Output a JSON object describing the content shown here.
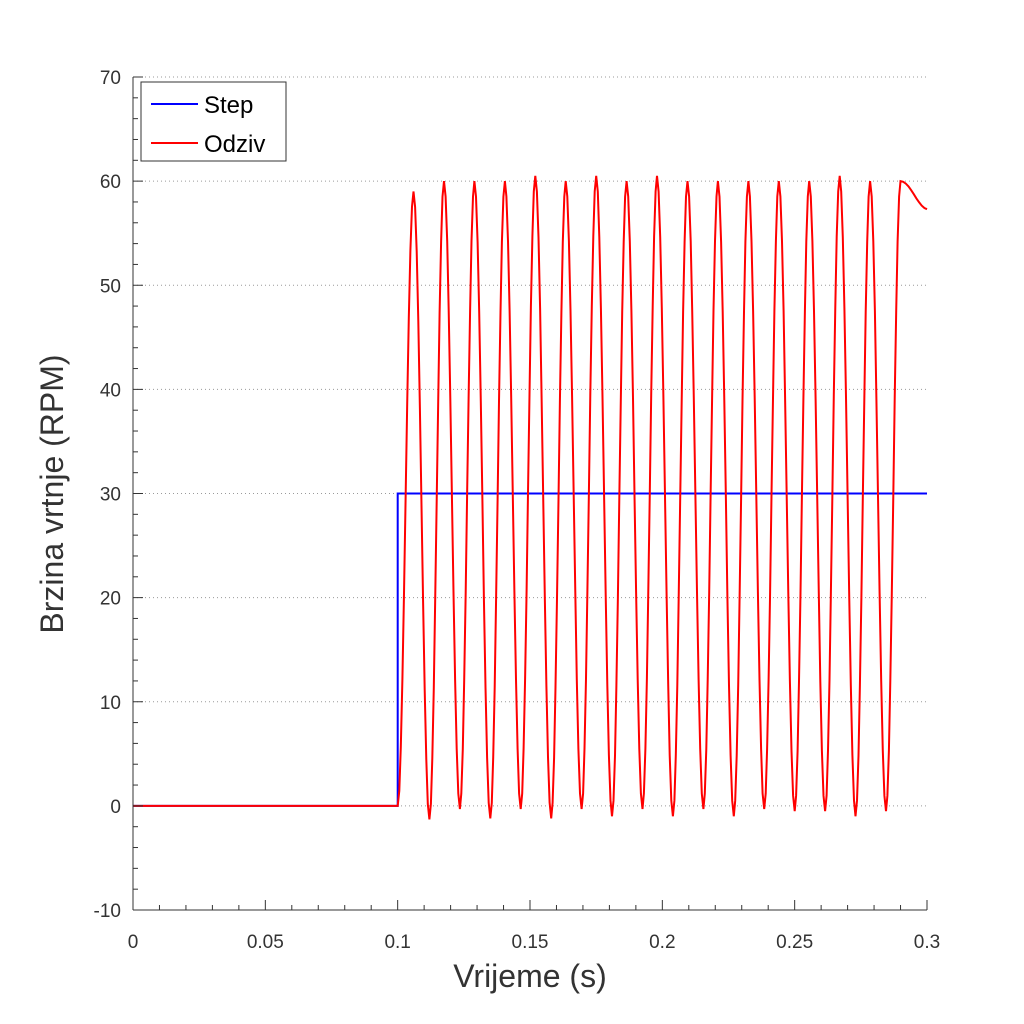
{
  "chart_data": {
    "type": "line",
    "title": "",
    "xlabel": "Vrijeme (s)",
    "ylabel": "Brzina vrtnje (RPM)",
    "xlim": [
      0,
      0.3
    ],
    "ylim": [
      -10,
      70
    ],
    "xticks": [
      0,
      0.05,
      0.1,
      0.15,
      0.2,
      0.25,
      0.3
    ],
    "xtick_labels": [
      "0",
      "0.05",
      "0.1",
      "0.15",
      "0.2",
      "0.25",
      "0.3"
    ],
    "yticks": [
      -10,
      0,
      10,
      20,
      30,
      40,
      50,
      60,
      70
    ],
    "ytick_labels": [
      "-10",
      "0",
      "10",
      "20",
      "30",
      "40",
      "50",
      "60",
      "70"
    ],
    "grid": "horizontal dotted",
    "legend_position": "top-left",
    "series": [
      {
        "name": "Step",
        "color": "#0000ff",
        "x": [
          0,
          0.1,
          0.1,
          0.3
        ],
        "y": [
          0,
          0,
          30,
          30
        ]
      },
      {
        "name": "Odziv",
        "color": "#ff0000",
        "oscillation": {
          "start_time": 0.1,
          "period": 0.0114,
          "min": -1,
          "max": 60,
          "peak_times": [
            0.106,
            0.1175,
            0.129,
            0.1405,
            0.152,
            0.1635,
            0.175,
            0.1865,
            0.198,
            0.2095,
            0.221,
            0.2325,
            0.244,
            0.2555,
            0.267,
            0.2785,
            0.29
          ],
          "peak_values": [
            59,
            60,
            60,
            60,
            60.5,
            60,
            60.5,
            60,
            60.5,
            60,
            60,
            60,
            60,
            60,
            60.5,
            60,
            60
          ],
          "trough_times": [
            0.112,
            0.1235,
            0.135,
            0.1465,
            0.158,
            0.1695,
            0.181,
            0.1925,
            0.204,
            0.2155,
            0.227,
            0.2385,
            0.25,
            0.2615,
            0.273,
            0.2845
          ],
          "trough_values": [
            -1.3,
            -0.3,
            -1.2,
            -0.3,
            -1.2,
            -0.3,
            -1.0,
            -0.3,
            -1.0,
            -0.3,
            -1.0,
            -0.3,
            -0.5,
            -0.5,
            -1.0,
            -0.5
          ],
          "end_value": 57.3
        }
      }
    ]
  }
}
